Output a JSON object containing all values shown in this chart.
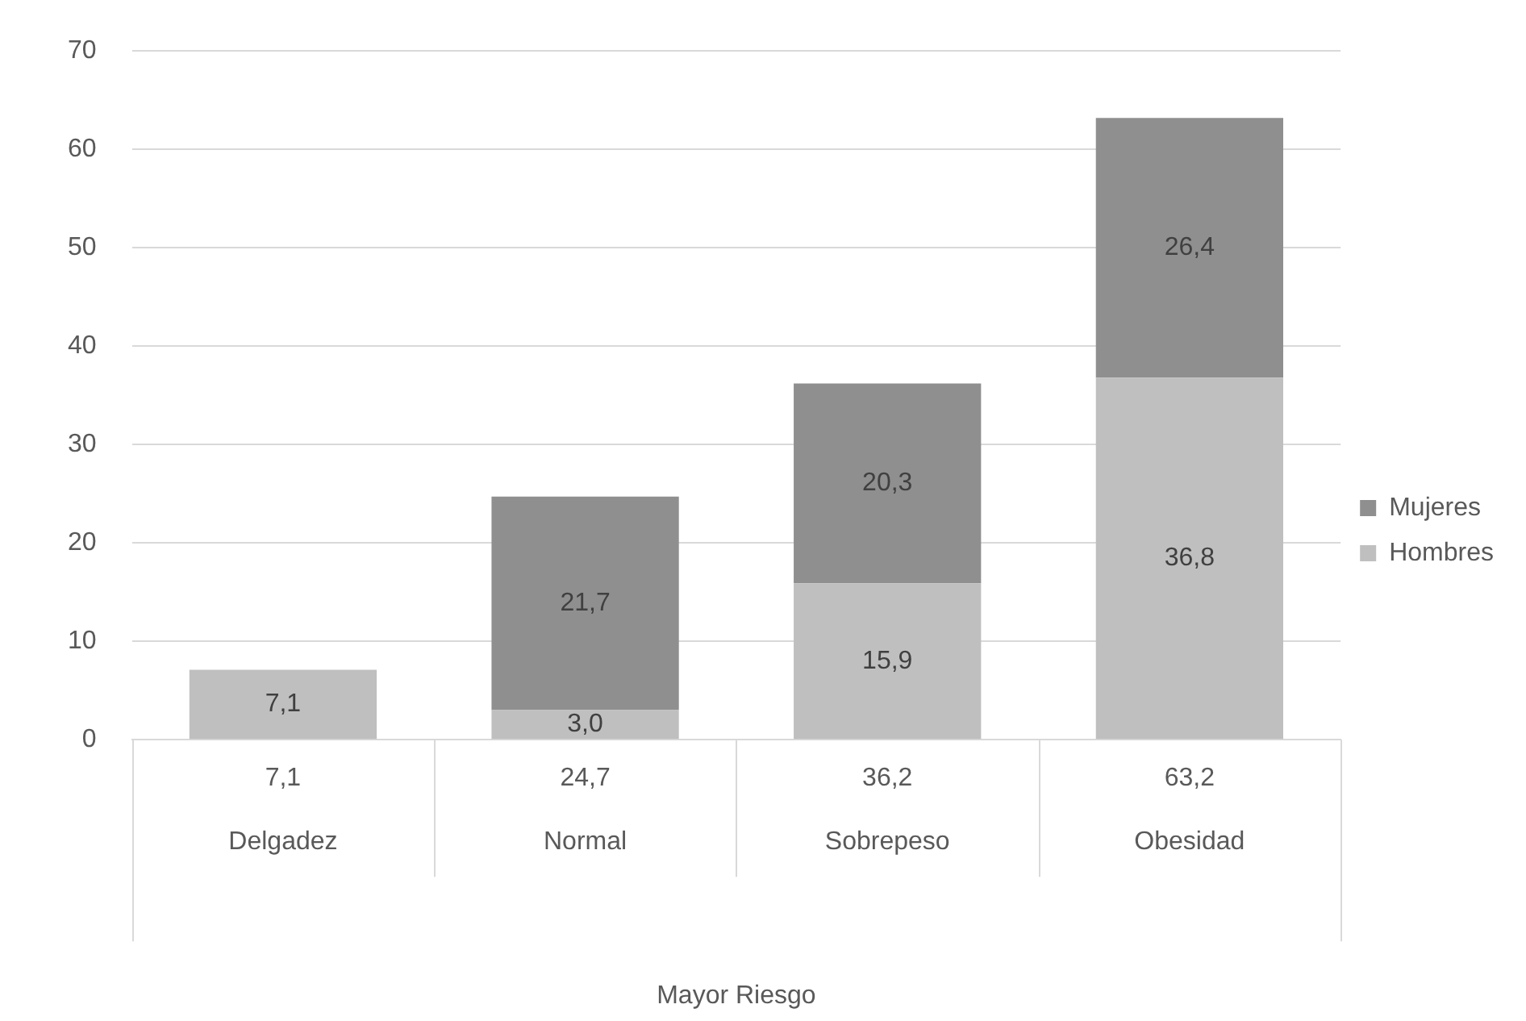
{
  "chart_data": {
    "type": "bar",
    "stacked": true,
    "xlabel": "Mayor Riesgo",
    "categories": [
      "Delgadez",
      "Normal",
      "Sobrepeso",
      "Obesidad"
    ],
    "series": [
      {
        "name": "Hombres",
        "color": "#bfbfbf",
        "values": [
          7.1,
          3.0,
          15.9,
          36.8
        ],
        "value_labels": [
          "7,1",
          "3,0",
          "15,9",
          "36,8"
        ]
      },
      {
        "name": "Mujeres",
        "color": "#8f8f8f",
        "values": [
          null,
          21.7,
          20.3,
          26.4
        ],
        "value_labels": [
          null,
          "21,7",
          "20,3",
          "26,4"
        ]
      }
    ],
    "totals": [
      "7,1",
      "24,7",
      "36,2",
      "63,2"
    ],
    "ylim": [
      0,
      70
    ],
    "yticks": [
      0,
      10,
      20,
      30,
      40,
      50,
      60,
      70
    ],
    "grid": "y",
    "legend": "right"
  }
}
